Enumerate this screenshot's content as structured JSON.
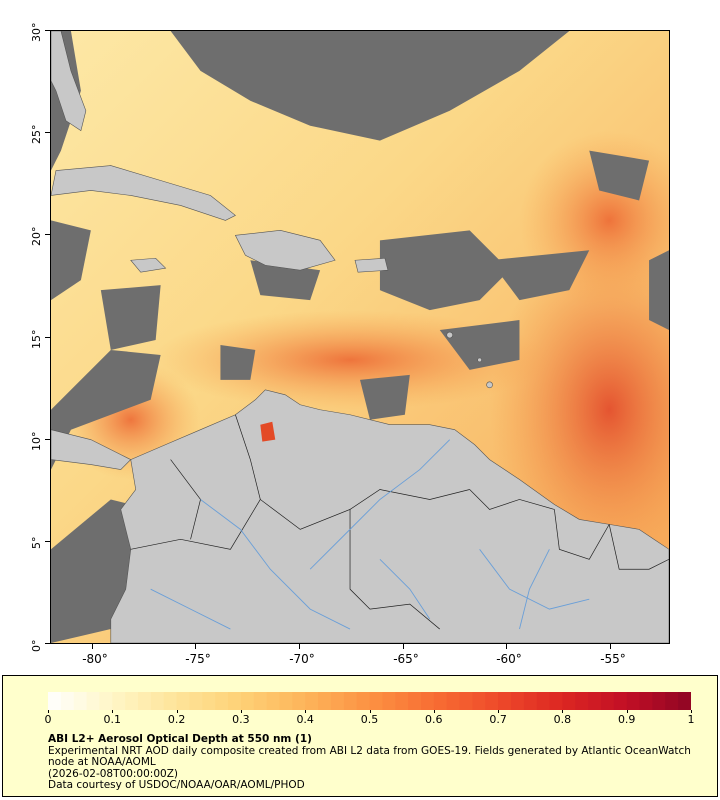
{
  "map": {
    "y_axis_labels": [
      "30°",
      "25°",
      "20°",
      "15°",
      "10°",
      "5°",
      "0°"
    ],
    "x_axis_labels": [
      "-80°",
      "-75°",
      "-70°",
      "-65°",
      "-60°",
      "-55°"
    ],
    "colors": {
      "land": "#c8c8c8",
      "no_data": "#6e6e6e",
      "low_aod": "#fde9a8",
      "mid_aod": "#f9b456",
      "high_aod": "#e34a26",
      "rivers": "#6a9fd8",
      "borders": "#000000"
    }
  },
  "legend": {
    "colorbar_labels": [
      "0",
      "0.1",
      "0.2",
      "0.3",
      "0.4",
      "0.5",
      "0.6",
      "0.7",
      "0.8",
      "0.9",
      "1"
    ],
    "colorbar_colors": [
      "#ffffff",
      "#fff6c6",
      "#fee49a",
      "#fed176",
      "#fdb45a",
      "#fc9243",
      "#f86d33",
      "#ee4a2a",
      "#dc2622",
      "#c10f25",
      "#8f0524"
    ],
    "title": "ABI L2+ Aerosol Optical Depth at 550 nm (1)",
    "line1": "Experimental NRT AOD daily composite created from ABI L2 data from GOES-19. Fields generated by Atlantic OceanWatch node at NOAA/AOML",
    "line2": "(2026-02-08T00:00:00Z)",
    "line3": "Data courtesy of USDOC/NOAA/OAR/AOML/PHOD"
  }
}
